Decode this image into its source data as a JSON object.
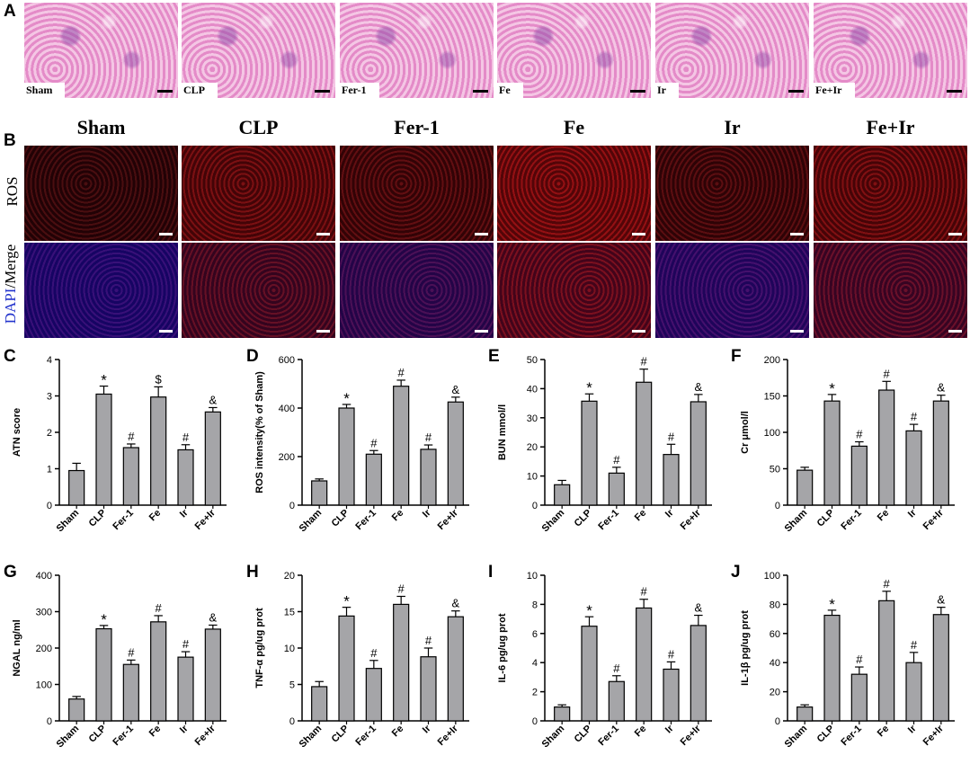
{
  "panels": {
    "a": "A",
    "b": "B",
    "c": "C",
    "d": "D",
    "e": "E",
    "f": "F",
    "g": "G",
    "h": "H",
    "i": "I",
    "j": "J"
  },
  "groups": [
    "Sham",
    "CLP",
    "Fer-1",
    "Fe",
    "Ir",
    "Fe+Ir"
  ],
  "row_labels": {
    "ros": "ROS",
    "dapi": "DAPI",
    "merge": "/Merge"
  },
  "colors": {
    "bar": "#a5a5a8",
    "dapi": "#2233cc",
    "ros_bg": "#7a0a10"
  },
  "chart_data": [
    {
      "id": "C",
      "type": "bar",
      "categories": [
        "Sham",
        "CLP",
        "Fer-1",
        "Fe",
        "Ir",
        "Fe+Ir"
      ],
      "values": [
        0.95,
        3.05,
        1.58,
        2.97,
        1.52,
        2.56
      ],
      "errors": [
        0.2,
        0.22,
        0.1,
        0.28,
        0.14,
        0.12
      ],
      "annotations": [
        "",
        "*",
        "#",
        "$",
        "#",
        "&"
      ],
      "ylabel": "ATN score",
      "ylim": [
        0,
        4
      ],
      "yticks": [
        0,
        1,
        2,
        3,
        4
      ],
      "ytick_labels": [
        "0",
        "1",
        "2",
        "3",
        "4"
      ]
    },
    {
      "id": "D",
      "type": "bar",
      "categories": [
        "Sham",
        "CLP",
        "Fer-1",
        "Fe",
        "Ir",
        "Fe+Ir"
      ],
      "values": [
        100,
        400,
        210,
        490,
        230,
        425
      ],
      "errors": [
        8,
        15,
        15,
        25,
        18,
        20
      ],
      "annotations": [
        "",
        "*",
        "#",
        "#",
        "#",
        "&"
      ],
      "ylabel": "ROS intensity(% of Sham)",
      "ylim": [
        0,
        600
      ],
      "yticks": [
        0,
        200,
        400,
        600
      ],
      "ytick_labels": [
        "0",
        "200",
        "400",
        "600"
      ]
    },
    {
      "id": "E",
      "type": "bar",
      "categories": [
        "Sham",
        "CLP",
        "Fer-1",
        "Fe",
        "Ir",
        "Fe+Ir"
      ],
      "values": [
        7,
        35.7,
        11,
        42.2,
        17.4,
        35.5
      ],
      "errors": [
        1.5,
        2.5,
        2,
        4.5,
        3.5,
        2.5
      ],
      "annotations": [
        "",
        "*",
        "#",
        "#",
        "#",
        "&"
      ],
      "ylabel": "BUN mmol/l",
      "ylim": [
        0,
        50
      ],
      "yticks": [
        0,
        10,
        20,
        30,
        40,
        50
      ],
      "ytick_labels": [
        "0",
        "10",
        "20",
        "30",
        "40",
        "50"
      ]
    },
    {
      "id": "F",
      "type": "bar",
      "categories": [
        "Sham",
        "CLP",
        "Fer-1",
        "Fe",
        "Ir",
        "Fe+Ir"
      ],
      "values": [
        48,
        143,
        81,
        158,
        102,
        143
      ],
      "errors": [
        4,
        9,
        6,
        12,
        9,
        8
      ],
      "annotations": [
        "",
        "*",
        "#",
        "#",
        "#",
        "&"
      ],
      "ylabel": "Cr μmol/l",
      "ylim": [
        0,
        200
      ],
      "yticks": [
        0,
        50,
        100,
        150,
        200
      ],
      "ytick_labels": [
        "0",
        "50",
        "100",
        "150",
        "200"
      ]
    },
    {
      "id": "G",
      "type": "bar",
      "categories": [
        "Sham",
        "CLP",
        "Fer-1",
        "Fe",
        "Ir",
        "Fe+Ir"
      ],
      "values": [
        60,
        253,
        155,
        272,
        175,
        252
      ],
      "errors": [
        7,
        9,
        12,
        17,
        15,
        11
      ],
      "annotations": [
        "",
        "*",
        "#",
        "#",
        "#",
        "&"
      ],
      "ylabel": "NGAL ng/ml",
      "ylim": [
        0,
        400
      ],
      "yticks": [
        0,
        100,
        200,
        300,
        400
      ],
      "ytick_labels": [
        "0",
        "100",
        "200",
        "300",
        "400"
      ]
    },
    {
      "id": "H",
      "type": "bar",
      "categories": [
        "Sham",
        "CLP",
        "Fer-1",
        "Fe",
        "Ir",
        "Fe+Ir"
      ],
      "values": [
        4.7,
        14.4,
        7.2,
        16,
        8.8,
        14.3
      ],
      "errors": [
        0.7,
        1.2,
        1.1,
        1.1,
        1.2,
        0.8
      ],
      "annotations": [
        "",
        "*",
        "#",
        "#",
        "#",
        "&"
      ],
      "ylabel": "TNF-α pg/ug prot",
      "ylim": [
        0,
        20
      ],
      "yticks": [
        0,
        5,
        10,
        15,
        20
      ],
      "ytick_labels": [
        "0",
        "5",
        "10",
        "15",
        "20"
      ]
    },
    {
      "id": "I",
      "type": "bar",
      "categories": [
        "Sham",
        "CLP",
        "Fer-1",
        "Fe",
        "Ir",
        "Fe+Ir"
      ],
      "values": [
        0.95,
        6.5,
        2.7,
        7.75,
        3.55,
        6.55
      ],
      "errors": [
        0.15,
        0.65,
        0.4,
        0.6,
        0.5,
        0.7
      ],
      "annotations": [
        "",
        "*",
        "#",
        "#",
        "#",
        "&"
      ],
      "ylabel": "IL-6 pg/ug prot",
      "ylim": [
        0,
        10
      ],
      "yticks": [
        0,
        2,
        4,
        6,
        8,
        10
      ],
      "ytick_labels": [
        "0",
        "2",
        "4",
        "6",
        "8",
        "10"
      ]
    },
    {
      "id": "J",
      "type": "bar",
      "categories": [
        "Sham",
        "CLP",
        "Fer-1",
        "Fe",
        "Ir",
        "Fe+Ir"
      ],
      "values": [
        9.5,
        72.5,
        32,
        82.5,
        40,
        73
      ],
      "errors": [
        1.5,
        3.5,
        5,
        6.5,
        7,
        5
      ],
      "annotations": [
        "",
        "*",
        "#",
        "#",
        "#",
        "&"
      ],
      "ylabel": "IL-1β pg/ug prot",
      "ylim": [
        0,
        100
      ],
      "yticks": [
        0,
        20,
        40,
        60,
        80,
        100
      ],
      "ytick_labels": [
        "0",
        "20",
        "40",
        "60",
        "80",
        "100"
      ]
    }
  ]
}
